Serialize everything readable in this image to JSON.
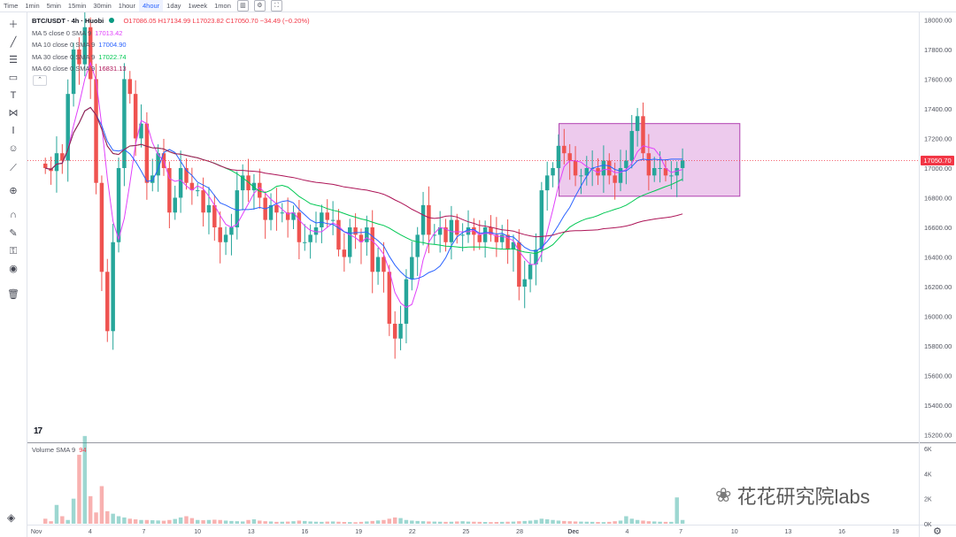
{
  "toolbar": {
    "timeframes": [
      "Time",
      "1min",
      "5min",
      "15min",
      "30min",
      "1hour",
      "4hour",
      "1day",
      "1week",
      "1mon"
    ],
    "active": "4hour",
    "icons": [
      "chart-type-icon",
      "settings-icon",
      "fullscreen-icon"
    ]
  },
  "legend": {
    "symbol": "BTC/USDT · 4h · Huobi",
    "ohlc": "O17086.05 H17134.99 L17023.82 C17050.70 −34.49 (−0.20%)",
    "ma": [
      {
        "label": "MA 5 close 0 SMA 9",
        "value": "17013.42",
        "color": "#e040fb"
      },
      {
        "label": "MA 10 close 0 SMA 9",
        "value": "17004.90",
        "color": "#2962ff"
      },
      {
        "label": "MA 30 close 0 SMA 9",
        "value": "17022.74",
        "color": "#00c853"
      },
      {
        "label": "MA 60 close 0 SMA 9",
        "value": "16831.13",
        "color": "#ad1457"
      }
    ],
    "collapse_glyph": "⌃"
  },
  "volume": {
    "label": "Volume SMA 9",
    "value": "94"
  },
  "tv_logo": "17",
  "watermark": "花花研究院labs",
  "current_price": "17050.70",
  "colors": {
    "up": "#26a69a",
    "down": "#ef5350",
    "ma5": "#e040fb",
    "ma10": "#2962ff",
    "ma30": "#00c853",
    "ma60": "#ad1457",
    "box": "#cc66cc"
  },
  "chart_data": {
    "type": "candlestick",
    "title": "BTC/USDT · 4h · Huobi",
    "price_axis_ticks": [
      "18000.00",
      "17800.00",
      "17600.00",
      "17400.00",
      "17200.00",
      "17000.00",
      "16800.00",
      "16600.00",
      "16400.00",
      "16200.00",
      "16000.00",
      "15800.00",
      "15600.00",
      "15400.00",
      "15200.00"
    ],
    "ylim": [
      15150,
      18050
    ],
    "volume_axis_ticks": [
      "6K",
      "4K",
      "2K",
      "0K"
    ],
    "volume_ylim": [
      0,
      6000
    ],
    "x_ticks": [
      "Nov",
      "4",
      "7",
      "10",
      "13",
      "16",
      "19",
      "22",
      "25",
      "28",
      "Dec",
      "4",
      "7",
      "10",
      "13",
      "16",
      "19"
    ],
    "x_tick_days": [
      1,
      4,
      7,
      10,
      13,
      16,
      19,
      22,
      25,
      28,
      31,
      34,
      37,
      40,
      43,
      46,
      49
    ],
    "x_start_day": 0.5,
    "x_end_day": 50.3,
    "current_price": 17050.7,
    "rectangle": {
      "start_day": 30.2,
      "end_day": 40.3,
      "top": 17300,
      "bottom": 16810
    },
    "closes": [
      17000,
      16980,
      17100,
      17050,
      17500,
      17800,
      17700,
      17950,
      17600,
      16900,
      16300,
      15900,
      16500,
      17000,
      17600,
      17500,
      17200,
      17300,
      16900,
      16950,
      17100,
      17000,
      16700,
      16800,
      17000,
      16900,
      16850,
      16850,
      16700,
      16750,
      16600,
      16500,
      16550,
      16600,
      16850,
      16950,
      16850,
      16900,
      16800,
      16650,
      16750,
      16700,
      16700,
      16650,
      16700,
      16500,
      16500,
      16550,
      16600,
      16700,
      16650,
      16650,
      16450,
      16400,
      16600,
      16550,
      16500,
      16600,
      16300,
      16400,
      16300,
      15950,
      15850,
      15950,
      16250,
      16400,
      16550,
      16750,
      16550,
      16550,
      16600,
      16500,
      16650,
      16550,
      16550,
      16600,
      16550,
      16500,
      16600,
      16550,
      16500,
      16550,
      16450,
      16500,
      16200,
      16250,
      16350,
      16450,
      16850,
      16950,
      17000,
      17150,
      17100,
      17050,
      16950,
      16950,
      17000,
      17000,
      16950,
      17050,
      16950,
      16900,
      17000,
      17050,
      17250,
      17350,
      17100,
      16950,
      17000,
      17000,
      16950,
      16950,
      17000,
      17051
    ],
    "volumes": [
      400,
      200,
      1500,
      600,
      300,
      2000,
      5500,
      7000,
      2200,
      900,
      3000,
      1000,
      800,
      600,
      500,
      400,
      350,
      300,
      300,
      280,
      260,
      240,
      300,
      380,
      500,
      600,
      450,
      300,
      280,
      300,
      320,
      300,
      250,
      220,
      200,
      180,
      300,
      350,
      250,
      200,
      180,
      150,
      160,
      170,
      200,
      250,
      220,
      180,
      160,
      150,
      170,
      180,
      160,
      140,
      130,
      120,
      150,
      180,
      220,
      260,
      300,
      400,
      500,
      450,
      300,
      250,
      220,
      200,
      180,
      170,
      160,
      150,
      160,
      180,
      200,
      170,
      160,
      150,
      140,
      130,
      140,
      150,
      160,
      170,
      200,
      220,
      250,
      300,
      400,
      350,
      300,
      250,
      220,
      200,
      180,
      170,
      160,
      150,
      140,
      130,
      150,
      200,
      250,
      600,
      400,
      300,
      250,
      200,
      180,
      160,
      150,
      150,
      2100,
      300
    ]
  }
}
